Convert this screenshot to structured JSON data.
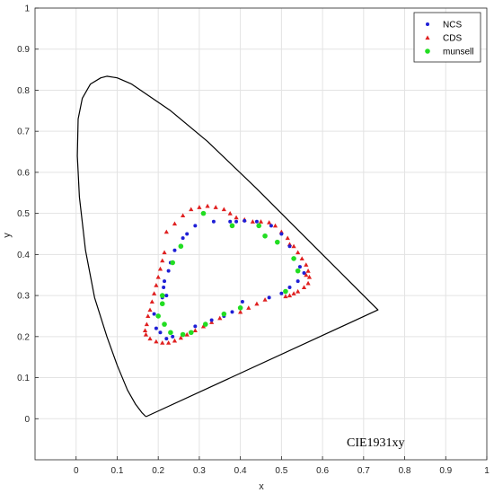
{
  "chart_data": {
    "type": "scatter",
    "title": "",
    "xlabel": "x",
    "ylabel": "y",
    "xlim": [
      -0.1,
      1
    ],
    "ylim": [
      -0.1,
      1
    ],
    "xticks": [
      "0",
      "0.1",
      "0.2",
      "0.3",
      "0.4",
      "0.5",
      "0.6",
      "0.7",
      "0.8",
      "0.9",
      "1"
    ],
    "xtick_values": [
      0,
      0.1,
      0.2,
      0.3,
      0.4,
      0.5,
      0.6,
      0.7,
      0.8,
      0.9,
      1
    ],
    "yticks": [
      "0",
      "0.1",
      "0.2",
      "0.3",
      "0.4",
      "0.5",
      "0.6",
      "0.7",
      "0.8",
      "0.9",
      "1"
    ],
    "ytick_values": [
      0,
      0.1,
      0.2,
      0.3,
      0.4,
      0.5,
      0.6,
      0.7,
      0.8,
      0.9,
      1
    ],
    "grid": true,
    "legend_position": "top-right",
    "annotation": "CIE1931xy",
    "locus": {
      "color": "#000000",
      "points": [
        [
          0.17,
          0.005
        ],
        [
          0.16,
          0.015
        ],
        [
          0.145,
          0.035
        ],
        [
          0.125,
          0.07
        ],
        [
          0.1,
          0.13
        ],
        [
          0.075,
          0.2
        ],
        [
          0.045,
          0.295
        ],
        [
          0.023,
          0.41
        ],
        [
          0.008,
          0.54
        ],
        [
          0.003,
          0.64
        ],
        [
          0.005,
          0.73
        ],
        [
          0.015,
          0.78
        ],
        [
          0.035,
          0.815
        ],
        [
          0.06,
          0.83
        ],
        [
          0.075,
          0.834
        ],
        [
          0.1,
          0.83
        ],
        [
          0.135,
          0.815
        ],
        [
          0.23,
          0.75
        ],
        [
          0.32,
          0.675
        ],
        [
          0.44,
          0.56
        ],
        [
          0.53,
          0.47
        ],
        [
          0.6,
          0.4
        ],
        [
          0.66,
          0.34
        ],
        [
          0.735,
          0.265
        ],
        [
          0.17,
          0.005
        ]
      ]
    },
    "series": [
      {
        "name": "NCS",
        "marker": "dot",
        "color": "#1f1fd6",
        "points": [
          [
            0.29,
            0.47
          ],
          [
            0.335,
            0.48
          ],
          [
            0.375,
            0.48
          ],
          [
            0.39,
            0.48
          ],
          [
            0.41,
            0.482
          ],
          [
            0.44,
            0.48
          ],
          [
            0.475,
            0.47
          ],
          [
            0.5,
            0.45
          ],
          [
            0.52,
            0.42
          ],
          [
            0.53,
            0.39
          ],
          [
            0.545,
            0.37
          ],
          [
            0.555,
            0.355
          ],
          [
            0.54,
            0.335
          ],
          [
            0.52,
            0.32
          ],
          [
            0.5,
            0.305
          ],
          [
            0.47,
            0.295
          ],
          [
            0.405,
            0.285
          ],
          [
            0.38,
            0.26
          ],
          [
            0.36,
            0.25
          ],
          [
            0.33,
            0.24
          ],
          [
            0.29,
            0.225
          ],
          [
            0.26,
            0.205
          ],
          [
            0.235,
            0.2
          ],
          [
            0.22,
            0.195
          ],
          [
            0.205,
            0.21
          ],
          [
            0.195,
            0.22
          ],
          [
            0.19,
            0.255
          ],
          [
            0.21,
            0.295
          ],
          [
            0.215,
            0.335
          ],
          [
            0.225,
            0.36
          ],
          [
            0.23,
            0.38
          ],
          [
            0.24,
            0.41
          ],
          [
            0.26,
            0.44
          ],
          [
            0.27,
            0.45
          ],
          [
            0.22,
            0.3
          ],
          [
            0.213,
            0.32
          ]
        ]
      },
      {
        "name": "CDS",
        "marker": "triangle",
        "color": "#e02020",
        "points": [
          [
            0.22,
            0.455
          ],
          [
            0.24,
            0.475
          ],
          [
            0.26,
            0.495
          ],
          [
            0.28,
            0.51
          ],
          [
            0.3,
            0.515
          ],
          [
            0.32,
            0.518
          ],
          [
            0.34,
            0.515
          ],
          [
            0.36,
            0.51
          ],
          [
            0.375,
            0.5
          ],
          [
            0.39,
            0.49
          ],
          [
            0.41,
            0.485
          ],
          [
            0.43,
            0.48
          ],
          [
            0.45,
            0.48
          ],
          [
            0.47,
            0.478
          ],
          [
            0.485,
            0.47
          ],
          [
            0.5,
            0.455
          ],
          [
            0.515,
            0.44
          ],
          [
            0.53,
            0.42
          ],
          [
            0.54,
            0.405
          ],
          [
            0.55,
            0.39
          ],
          [
            0.56,
            0.375
          ],
          [
            0.565,
            0.36
          ],
          [
            0.568,
            0.345
          ],
          [
            0.565,
            0.33
          ],
          [
            0.555,
            0.32
          ],
          [
            0.54,
            0.31
          ],
          [
            0.53,
            0.305
          ],
          [
            0.52,
            0.3
          ],
          [
            0.51,
            0.298
          ],
          [
            0.46,
            0.29
          ],
          [
            0.44,
            0.28
          ],
          [
            0.42,
            0.27
          ],
          [
            0.4,
            0.26
          ],
          [
            0.35,
            0.245
          ],
          [
            0.33,
            0.235
          ],
          [
            0.31,
            0.225
          ],
          [
            0.29,
            0.215
          ],
          [
            0.27,
            0.205
          ],
          [
            0.255,
            0.197
          ],
          [
            0.24,
            0.19
          ],
          [
            0.225,
            0.185
          ],
          [
            0.21,
            0.185
          ],
          [
            0.195,
            0.188
          ],
          [
            0.18,
            0.195
          ],
          [
            0.17,
            0.205
          ],
          [
            0.168,
            0.215
          ],
          [
            0.172,
            0.23
          ],
          [
            0.175,
            0.25
          ],
          [
            0.18,
            0.265
          ],
          [
            0.185,
            0.285
          ],
          [
            0.19,
            0.305
          ],
          [
            0.195,
            0.325
          ],
          [
            0.2,
            0.345
          ],
          [
            0.205,
            0.365
          ],
          [
            0.21,
            0.385
          ],
          [
            0.215,
            0.405
          ],
          [
            0.52,
            0.425
          ],
          [
            0.56,
            0.35
          ]
        ]
      },
      {
        "name": "munsell",
        "marker": "circle",
        "color": "#22dd22",
        "points": [
          [
            0.31,
            0.5
          ],
          [
            0.38,
            0.47
          ],
          [
            0.445,
            0.47
          ],
          [
            0.46,
            0.445
          ],
          [
            0.49,
            0.43
          ],
          [
            0.53,
            0.39
          ],
          [
            0.54,
            0.36
          ],
          [
            0.51,
            0.31
          ],
          [
            0.4,
            0.27
          ],
          [
            0.36,
            0.255
          ],
          [
            0.315,
            0.23
          ],
          [
            0.28,
            0.21
          ],
          [
            0.26,
            0.205
          ],
          [
            0.23,
            0.21
          ],
          [
            0.215,
            0.23
          ],
          [
            0.2,
            0.25
          ],
          [
            0.21,
            0.28
          ],
          [
            0.21,
            0.3
          ],
          [
            0.235,
            0.38
          ],
          [
            0.255,
            0.42
          ]
        ]
      }
    ]
  }
}
